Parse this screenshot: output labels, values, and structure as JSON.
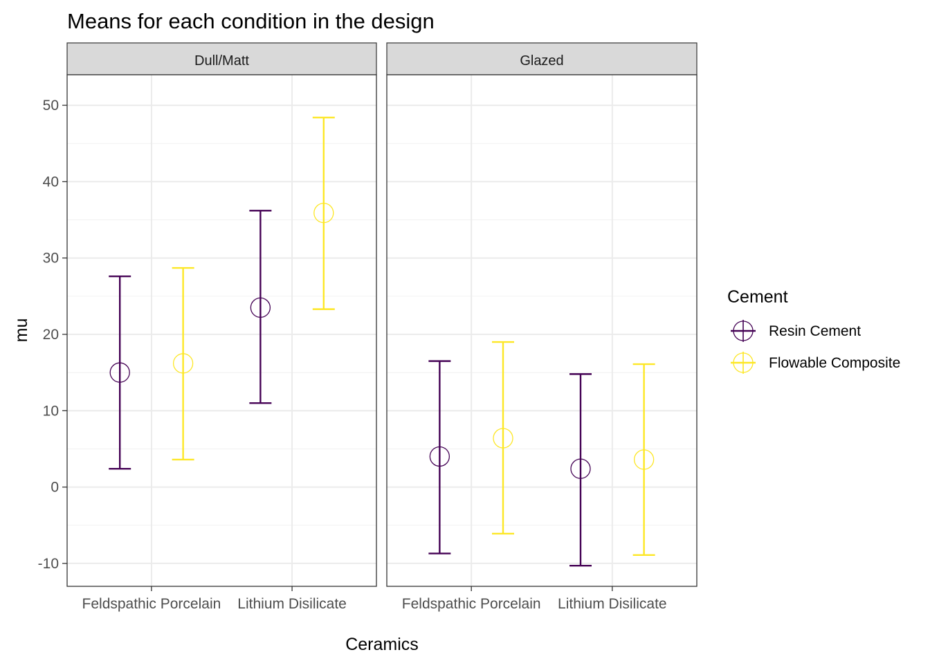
{
  "chart_data": {
    "type": "scatter",
    "title": "Means for each condition in the design",
    "xlabel": "Ceramics",
    "ylabel": "mu",
    "ylim": [
      -13,
      54
    ],
    "y_ticks": [
      -10,
      0,
      10,
      20,
      30,
      40,
      50
    ],
    "grid": true,
    "categories": [
      "Feldspathic Porcelain",
      "Lithium Disilicate"
    ],
    "facets": [
      "Dull/Matt",
      "Glazed"
    ],
    "legend": {
      "title": "Cement",
      "position": "right",
      "items": [
        "Resin Cement",
        "Flowable Composite"
      ]
    },
    "colors": {
      "Resin Cement": "#440154",
      "Flowable Composite": "#FDE725"
    },
    "series": [
      {
        "name": "Resin Cement",
        "points": [
          {
            "facet": "Dull/Matt",
            "x": "Feldspathic Porcelain",
            "y": 15.0,
            "ymin": 2.4,
            "ymax": 27.6
          },
          {
            "facet": "Dull/Matt",
            "x": "Lithium Disilicate",
            "y": 23.5,
            "ymin": 11.0,
            "ymax": 36.2
          },
          {
            "facet": "Glazed",
            "x": "Feldspathic Porcelain",
            "y": 4.0,
            "ymin": -8.7,
            "ymax": 16.5
          },
          {
            "facet": "Glazed",
            "x": "Lithium Disilicate",
            "y": 2.4,
            "ymin": -10.3,
            "ymax": 14.8
          }
        ]
      },
      {
        "name": "Flowable Composite",
        "points": [
          {
            "facet": "Dull/Matt",
            "x": "Feldspathic Porcelain",
            "y": 16.2,
            "ymin": 3.6,
            "ymax": 28.7
          },
          {
            "facet": "Dull/Matt",
            "x": "Lithium Disilicate",
            "y": 35.9,
            "ymin": 23.3,
            "ymax": 48.4
          },
          {
            "facet": "Glazed",
            "x": "Feldspathic Porcelain",
            "y": 6.4,
            "ymin": -6.1,
            "ymax": 19.0
          },
          {
            "facet": "Glazed",
            "x": "Lithium Disilicate",
            "y": 3.6,
            "ymin": -8.9,
            "ymax": 16.1
          }
        ]
      }
    ]
  }
}
